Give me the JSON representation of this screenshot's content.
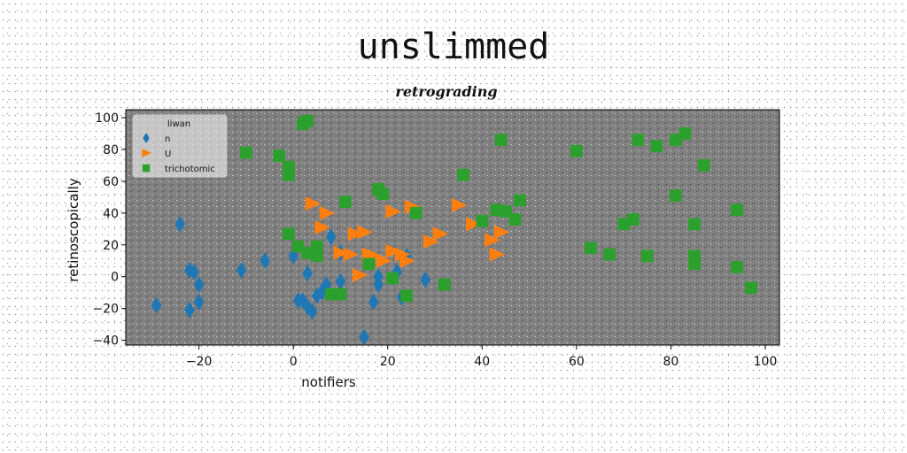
{
  "chart_data": {
    "type": "scatter",
    "title": "unslimmed",
    "subtitle": "retrograding",
    "xlabel": "notifiers",
    "ylabel": "retinoscopically",
    "xlim": [
      -35.5,
      103
    ],
    "ylim": [
      -43,
      105
    ],
    "xticks": [
      -20,
      0,
      20,
      40,
      60,
      80,
      100
    ],
    "yticks": [
      -40,
      -20,
      0,
      20,
      40,
      60,
      80,
      100
    ],
    "grid": false,
    "plot_background": "#808080",
    "legend": {
      "title": "liwan",
      "placement": "top-left"
    },
    "series": [
      {
        "name": "n",
        "marker": "thin-diamond",
        "color": "#1f77b4",
        "points": [
          [
            -29,
            -18
          ],
          [
            -24,
            33
          ],
          [
            -22,
            -21
          ],
          [
            -22,
            4
          ],
          [
            -21,
            3
          ],
          [
            -20,
            -16
          ],
          [
            -20,
            -5
          ],
          [
            -11,
            4
          ],
          [
            -6,
            10
          ],
          [
            0,
            13
          ],
          [
            1,
            -15
          ],
          [
            2,
            -15
          ],
          [
            3,
            2
          ],
          [
            3,
            -19
          ],
          [
            4,
            -22
          ],
          [
            5,
            -12
          ],
          [
            6,
            -10
          ],
          [
            7,
            -5
          ],
          [
            8,
            25
          ],
          [
            10,
            -3
          ],
          [
            15,
            -38
          ],
          [
            17,
            -16
          ],
          [
            18,
            -5
          ],
          [
            18,
            0
          ],
          [
            22,
            3
          ],
          [
            23,
            -13
          ],
          [
            24,
            13
          ],
          [
            28,
            -2
          ],
          [
            10,
            15
          ]
        ]
      },
      {
        "name": "U",
        "marker": "triangle-right",
        "color": "#ff7f0e",
        "points": [
          [
            4,
            46
          ],
          [
            7,
            40
          ],
          [
            6,
            31
          ],
          [
            10,
            15
          ],
          [
            12,
            14
          ],
          [
            13,
            27
          ],
          [
            14,
            1
          ],
          [
            15,
            28
          ],
          [
            16,
            14
          ],
          [
            17,
            13
          ],
          [
            19,
            10
          ],
          [
            21,
            16
          ],
          [
            21,
            41
          ],
          [
            23,
            14
          ],
          [
            24,
            10
          ],
          [
            25,
            44
          ],
          [
            29,
            22
          ],
          [
            31,
            27
          ],
          [
            35,
            45
          ],
          [
            38,
            33
          ],
          [
            42,
            23
          ],
          [
            43,
            14
          ],
          [
            44,
            28
          ]
        ]
      },
      {
        "name": "trichotomic",
        "marker": "square",
        "color": "#2ca02c",
        "points": [
          [
            -10,
            78
          ],
          [
            -3,
            76
          ],
          [
            -1,
            69
          ],
          [
            -1,
            64
          ],
          [
            -1,
            27
          ],
          [
            1,
            19
          ],
          [
            2,
            96
          ],
          [
            3,
            98
          ],
          [
            3,
            15
          ],
          [
            5,
            13
          ],
          [
            5,
            19
          ],
          [
            8,
            -11
          ],
          [
            10,
            -11
          ],
          [
            11,
            47
          ],
          [
            16,
            8
          ],
          [
            18,
            55
          ],
          [
            19,
            52
          ],
          [
            21,
            -1
          ],
          [
            24,
            -12
          ],
          [
            26,
            40
          ],
          [
            32,
            -5
          ],
          [
            36,
            64
          ],
          [
            40,
            35
          ],
          [
            43,
            42
          ],
          [
            44,
            86
          ],
          [
            45,
            41
          ],
          [
            47,
            36
          ],
          [
            48,
            48
          ],
          [
            60,
            79
          ],
          [
            63,
            18
          ],
          [
            67,
            14
          ],
          [
            70,
            33
          ],
          [
            72,
            36
          ],
          [
            73,
            86
          ],
          [
            75,
            13
          ],
          [
            77,
            82
          ],
          [
            81,
            86
          ],
          [
            81,
            51
          ],
          [
            83,
            90
          ],
          [
            85,
            33
          ],
          [
            85,
            13
          ],
          [
            85,
            8
          ],
          [
            87,
            70
          ],
          [
            94,
            42
          ],
          [
            94,
            6
          ],
          [
            97,
            -7
          ]
        ]
      }
    ]
  }
}
